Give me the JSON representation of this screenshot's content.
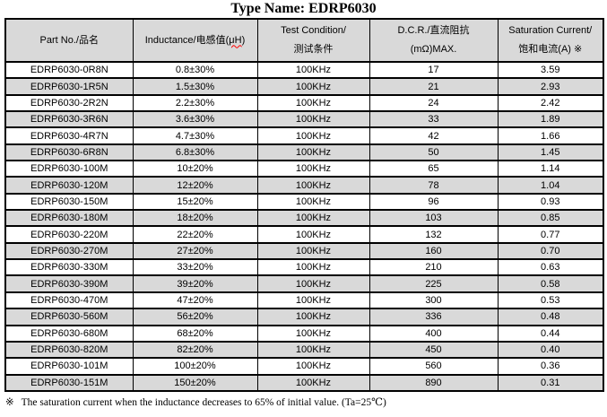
{
  "title": "Type Name: EDRP6030",
  "colors": {
    "stripe": "#d9d9d9",
    "table_border": "#000000",
    "spellcheck_underline": "#ff0000",
    "page_background": "#ffffff"
  },
  "table": {
    "header": {
      "part_no": {
        "line1": "Part No./品名"
      },
      "inductance": {
        "pre": "Inductance/电感值(",
        "wavy": "μH",
        "post": ")"
      },
      "test_condition": {
        "line1": "Test Condition/",
        "line2": "测试条件"
      },
      "dcr": {
        "line1": "D.C.R./直流阻抗",
        "line2": "(mΩ)MAX."
      },
      "saturation": {
        "line1": "Saturation Current/",
        "line2": "饱和电流(A) ※"
      }
    },
    "rows": [
      {
        "part_no": "EDRP6030-0R8N",
        "inductance": "0.8±30%",
        "test_condition": "100KHz",
        "dcr": "17",
        "saturation": "3.59"
      },
      {
        "part_no": "EDRP6030-1R5N",
        "inductance": "1.5±30%",
        "test_condition": "100KHz",
        "dcr": "21",
        "saturation": "2.93"
      },
      {
        "part_no": "EDRP6030-2R2N",
        "inductance": "2.2±30%",
        "test_condition": "100KHz",
        "dcr": "24",
        "saturation": "2.42"
      },
      {
        "part_no": "EDRP6030-3R6N",
        "inductance": "3.6±30%",
        "test_condition": "100KHz",
        "dcr": "33",
        "saturation": "1.89"
      },
      {
        "part_no": "EDRP6030-4R7N",
        "inductance": "4.7±30%",
        "test_condition": "100KHz",
        "dcr": "42",
        "saturation": "1.66"
      },
      {
        "part_no": "EDRP6030-6R8N",
        "inductance": "6.8±30%",
        "test_condition": "100KHz",
        "dcr": "50",
        "saturation": "1.45"
      },
      {
        "part_no": "EDRP6030-100M",
        "inductance": "10±20%",
        "test_condition": "100KHz",
        "dcr": "65",
        "saturation": "1.14"
      },
      {
        "part_no": "EDRP6030-120M",
        "inductance": "12±20%",
        "test_condition": "100KHz",
        "dcr": "78",
        "saturation": "1.04"
      },
      {
        "part_no": "EDRP6030-150M",
        "inductance": "15±20%",
        "test_condition": "100KHz",
        "dcr": "96",
        "saturation": "0.93"
      },
      {
        "part_no": "EDRP6030-180M",
        "inductance": "18±20%",
        "test_condition": "100KHz",
        "dcr": "103",
        "saturation": "0.85"
      },
      {
        "part_no": "EDRP6030-220M",
        "inductance": "22±20%",
        "test_condition": "100KHz",
        "dcr": "132",
        "saturation": "0.77"
      },
      {
        "part_no": "EDRP6030-270M",
        "inductance": "27±20%",
        "test_condition": "100KHz",
        "dcr": "160",
        "saturation": "0.70"
      },
      {
        "part_no": "EDRP6030-330M",
        "inductance": "33±20%",
        "test_condition": "100KHz",
        "dcr": "210",
        "saturation": "0.63"
      },
      {
        "part_no": "EDRP6030-390M",
        "inductance": "39±20%",
        "test_condition": "100KHz",
        "dcr": "225",
        "saturation": "0.58"
      },
      {
        "part_no": "EDRP6030-470M",
        "inductance": "47±20%",
        "test_condition": "100KHz",
        "dcr": "300",
        "saturation": "0.53"
      },
      {
        "part_no": "EDRP6030-560M",
        "inductance": "56±20%",
        "test_condition": "100KHz",
        "dcr": "336",
        "saturation": "0.48"
      },
      {
        "part_no": "EDRP6030-680M",
        "inductance": "68±20%",
        "test_condition": "100KHz",
        "dcr": "400",
        "saturation": "0.44"
      },
      {
        "part_no": "EDRP6030-820M",
        "inductance": "82±20%",
        "test_condition": "100KHz",
        "dcr": "450",
        "saturation": "0.40"
      },
      {
        "part_no": "EDRP6030-101M",
        "inductance": "100±20%",
        "test_condition": "100KHz",
        "dcr": "560",
        "saturation": "0.36"
      },
      {
        "part_no": "EDRP6030-151M",
        "inductance": "150±20%",
        "test_condition": "100KHz",
        "dcr": "890",
        "saturation": "0.31"
      }
    ]
  },
  "footnote": {
    "symbol": "※",
    "text": "The saturation current when the inductance decreases to 65% of initial value. (Ta=25℃)"
  }
}
